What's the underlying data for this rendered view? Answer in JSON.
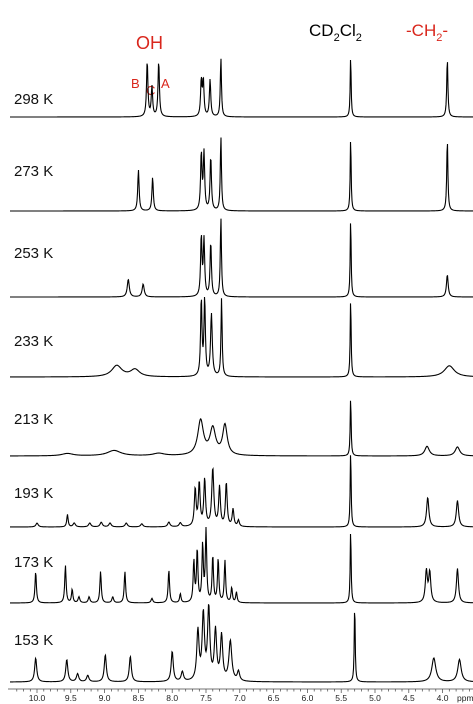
{
  "chart_data": {
    "type": "line",
    "xlabel": "ppm",
    "xlim": [
      10.3,
      3.3
    ],
    "x_reversed": true,
    "x_ticks": [
      {
        "value": 10.0,
        "label": "10.0"
      },
      {
        "value": 9.5,
        "label": "9.5"
      },
      {
        "value": 9.0,
        "label": "9.0"
      },
      {
        "value": 8.5,
        "label": "8.5"
      },
      {
        "value": 8.0,
        "label": "8.0"
      },
      {
        "value": 7.5,
        "label": "7.5"
      },
      {
        "value": 7.0,
        "label": "7.0"
      },
      {
        "value": 6.5,
        "label": "6.5"
      },
      {
        "value": 6.0,
        "label": "6.0"
      },
      {
        "value": 5.5,
        "label": "5.5"
      },
      {
        "value": 5.0,
        "label": "5.0"
      },
      {
        "value": 4.5,
        "label": "4.5"
      },
      {
        "value": 4.0,
        "label": "4.0"
      }
    ],
    "annotations": {
      "oh": "OH",
      "b": "B",
      "c": "C",
      "a": "A",
      "solvent_base": "CD",
      "solvent_sub1": "2",
      "solvent_mid": "Cl",
      "solvent_sub2": "2",
      "ch2_pre": "-CH",
      "ch2_sub": "2",
      "ch2_post": "-"
    },
    "series": [
      {
        "name": "298 K",
        "peaks": [
          {
            "x": 8.37,
            "h": 0.9,
            "w": 0.012
          },
          {
            "x": 8.3,
            "h": 0.48,
            "w": 0.012
          },
          {
            "x": 8.2,
            "h": 0.9,
            "w": 0.012
          },
          {
            "x": 7.57,
            "h": 0.58,
            "w": 0.012
          },
          {
            "x": 7.54,
            "h": 0.58,
            "w": 0.012
          },
          {
            "x": 7.44,
            "h": 0.6,
            "w": 0.012
          },
          {
            "x": 7.28,
            "h": 0.96,
            "w": 0.01
          },
          {
            "x": 5.36,
            "h": 1.0,
            "w": 0.008
          },
          {
            "x": 3.93,
            "h": 0.95,
            "w": 0.01
          }
        ]
      },
      {
        "name": "273 K",
        "peaks": [
          {
            "x": 8.5,
            "h": 0.55,
            "w": 0.012
          },
          {
            "x": 8.29,
            "h": 0.45,
            "w": 0.012
          },
          {
            "x": 7.57,
            "h": 0.76,
            "w": 0.012
          },
          {
            "x": 7.53,
            "h": 0.76,
            "w": 0.012
          },
          {
            "x": 7.43,
            "h": 0.72,
            "w": 0.012
          },
          {
            "x": 7.28,
            "h": 1.0,
            "w": 0.01
          },
          {
            "x": 5.36,
            "h": 1.0,
            "w": 0.008
          },
          {
            "x": 3.93,
            "h": 0.96,
            "w": 0.01
          }
        ]
      },
      {
        "name": "253 K",
        "peaks": [
          {
            "x": 8.65,
            "h": 0.22,
            "w": 0.018
          },
          {
            "x": 8.43,
            "h": 0.16,
            "w": 0.018
          },
          {
            "x": 7.57,
            "h": 0.75,
            "w": 0.012
          },
          {
            "x": 7.53,
            "h": 0.7,
            "w": 0.012
          },
          {
            "x": 7.43,
            "h": 0.68,
            "w": 0.012
          },
          {
            "x": 7.28,
            "h": 1.0,
            "w": 0.01
          },
          {
            "x": 5.36,
            "h": 1.0,
            "w": 0.008
          },
          {
            "x": 3.93,
            "h": 0.28,
            "w": 0.015
          }
        ]
      },
      {
        "name": "233 K",
        "peaks": [
          {
            "x": 8.82,
            "h": 0.14,
            "w": 0.09
          },
          {
            "x": 8.55,
            "h": 0.09,
            "w": 0.08
          },
          {
            "x": 7.57,
            "h": 0.96,
            "w": 0.012
          },
          {
            "x": 7.52,
            "h": 0.96,
            "w": 0.012
          },
          {
            "x": 7.42,
            "h": 0.78,
            "w": 0.015
          },
          {
            "x": 7.27,
            "h": 0.98,
            "w": 0.01
          },
          {
            "x": 5.36,
            "h": 1.0,
            "w": 0.008
          },
          {
            "x": 3.9,
            "h": 0.14,
            "w": 0.09
          }
        ]
      },
      {
        "name": "213 K",
        "peaks": [
          {
            "x": 9.55,
            "h": 0.04,
            "w": 0.1
          },
          {
            "x": 8.86,
            "h": 0.09,
            "w": 0.12
          },
          {
            "x": 8.2,
            "h": 0.04,
            "w": 0.1
          },
          {
            "x": 7.58,
            "h": 0.58,
            "w": 0.05
          },
          {
            "x": 7.4,
            "h": 0.44,
            "w": 0.05
          },
          {
            "x": 7.22,
            "h": 0.5,
            "w": 0.04
          },
          {
            "x": 5.36,
            "h": 1.0,
            "w": 0.008
          },
          {
            "x": 4.23,
            "h": 0.16,
            "w": 0.04
          },
          {
            "x": 3.78,
            "h": 0.15,
            "w": 0.04
          }
        ]
      },
      {
        "name": "193 K",
        "peaks": [
          {
            "x": 10.0,
            "h": 0.05,
            "w": 0.02
          },
          {
            "x": 9.55,
            "h": 0.16,
            "w": 0.012
          },
          {
            "x": 9.45,
            "h": 0.05,
            "w": 0.02
          },
          {
            "x": 9.22,
            "h": 0.05,
            "w": 0.02
          },
          {
            "x": 9.05,
            "h": 0.06,
            "w": 0.02
          },
          {
            "x": 8.92,
            "h": 0.05,
            "w": 0.02
          },
          {
            "x": 8.68,
            "h": 0.05,
            "w": 0.02
          },
          {
            "x": 8.45,
            "h": 0.04,
            "w": 0.02
          },
          {
            "x": 8.05,
            "h": 0.06,
            "w": 0.02
          },
          {
            "x": 7.88,
            "h": 0.05,
            "w": 0.02
          },
          {
            "x": 7.66,
            "h": 0.48,
            "w": 0.015
          },
          {
            "x": 7.6,
            "h": 0.55,
            "w": 0.015
          },
          {
            "x": 7.52,
            "h": 0.6,
            "w": 0.015
          },
          {
            "x": 7.4,
            "h": 0.74,
            "w": 0.018
          },
          {
            "x": 7.3,
            "h": 0.5,
            "w": 0.015
          },
          {
            "x": 7.2,
            "h": 0.56,
            "w": 0.015
          },
          {
            "x": 7.1,
            "h": 0.22,
            "w": 0.015
          },
          {
            "x": 7.02,
            "h": 0.08,
            "w": 0.015
          },
          {
            "x": 5.36,
            "h": 1.0,
            "w": 0.008
          },
          {
            "x": 4.22,
            "h": 0.38,
            "w": 0.02
          },
          {
            "x": 3.78,
            "h": 0.34,
            "w": 0.02
          }
        ]
      },
      {
        "name": "173 K",
        "peaks": [
          {
            "x": 10.02,
            "h": 0.42,
            "w": 0.012
          },
          {
            "x": 9.58,
            "h": 0.5,
            "w": 0.012
          },
          {
            "x": 9.48,
            "h": 0.18,
            "w": 0.012
          },
          {
            "x": 9.38,
            "h": 0.08,
            "w": 0.015
          },
          {
            "x": 9.23,
            "h": 0.08,
            "w": 0.015
          },
          {
            "x": 9.06,
            "h": 0.42,
            "w": 0.012
          },
          {
            "x": 8.88,
            "h": 0.08,
            "w": 0.015
          },
          {
            "x": 8.7,
            "h": 0.42,
            "w": 0.012
          },
          {
            "x": 8.3,
            "h": 0.06,
            "w": 0.015
          },
          {
            "x": 8.05,
            "h": 0.44,
            "w": 0.012
          },
          {
            "x": 7.88,
            "h": 0.12,
            "w": 0.012
          },
          {
            "x": 7.68,
            "h": 0.55,
            "w": 0.012
          },
          {
            "x": 7.63,
            "h": 0.7,
            "w": 0.012
          },
          {
            "x": 7.55,
            "h": 0.76,
            "w": 0.012
          },
          {
            "x": 7.5,
            "h": 0.95,
            "w": 0.012
          },
          {
            "x": 7.4,
            "h": 0.62,
            "w": 0.012
          },
          {
            "x": 7.32,
            "h": 0.58,
            "w": 0.012
          },
          {
            "x": 7.22,
            "h": 0.56,
            "w": 0.012
          },
          {
            "x": 7.12,
            "h": 0.2,
            "w": 0.012
          },
          {
            "x": 7.05,
            "h": 0.14,
            "w": 0.012
          },
          {
            "x": 5.36,
            "h": 1.0,
            "w": 0.008
          },
          {
            "x": 4.24,
            "h": 0.42,
            "w": 0.018
          },
          {
            "x": 4.19,
            "h": 0.4,
            "w": 0.018
          },
          {
            "x": 3.78,
            "h": 0.46,
            "w": 0.018
          }
        ]
      },
      {
        "name": "153 K",
        "peaks": [
          {
            "x": 10.02,
            "h": 0.3,
            "w": 0.018
          },
          {
            "x": 9.56,
            "h": 0.28,
            "w": 0.018
          },
          {
            "x": 9.4,
            "h": 0.1,
            "w": 0.02
          },
          {
            "x": 9.25,
            "h": 0.08,
            "w": 0.02
          },
          {
            "x": 8.99,
            "h": 0.34,
            "w": 0.018
          },
          {
            "x": 8.62,
            "h": 0.32,
            "w": 0.018
          },
          {
            "x": 8.0,
            "h": 0.38,
            "w": 0.018
          },
          {
            "x": 7.85,
            "h": 0.12,
            "w": 0.02
          },
          {
            "x": 7.62,
            "h": 0.62,
            "w": 0.02
          },
          {
            "x": 7.54,
            "h": 0.82,
            "w": 0.02
          },
          {
            "x": 7.46,
            "h": 0.9,
            "w": 0.02
          },
          {
            "x": 7.36,
            "h": 0.62,
            "w": 0.02
          },
          {
            "x": 7.27,
            "h": 0.56,
            "w": 0.02
          },
          {
            "x": 7.14,
            "h": 0.5,
            "w": 0.025
          },
          {
            "x": 7.02,
            "h": 0.12,
            "w": 0.02
          },
          {
            "x": 5.3,
            "h": 1.0,
            "w": 0.008
          },
          {
            "x": 4.13,
            "h": 0.3,
            "w": 0.035
          },
          {
            "x": 3.75,
            "h": 0.28,
            "w": 0.03
          }
        ]
      }
    ]
  }
}
